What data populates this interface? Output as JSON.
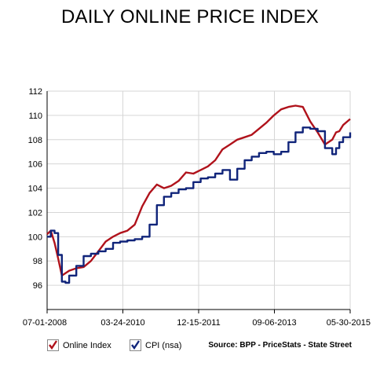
{
  "title": "DAILY ONLINE PRICE INDEX",
  "source": "Source: BPP - PriceStats - State Street",
  "chart_data": {
    "type": "line",
    "title": "DAILY ONLINE PRICE INDEX",
    "xlabel": "",
    "ylabel": "",
    "ylim": [
      94,
      112
    ],
    "yticks": [
      96,
      98,
      100,
      102,
      104,
      106,
      108,
      110,
      112
    ],
    "xlim": [
      "2008-07-01",
      "2015-05-30"
    ],
    "xticks": [
      "07-01-2008",
      "03-24-2010",
      "12-15-2011",
      "09-06-2013",
      "05-30-2015"
    ],
    "grid": true,
    "legend": "bottom-left",
    "series": [
      {
        "name": "Online Index",
        "color": "#b0121b",
        "x": [
          "2008-07-01",
          "2008-08-01",
          "2008-09-01",
          "2008-10-01",
          "2008-11-01",
          "2008-12-01",
          "2009-01-01",
          "2009-03-01",
          "2009-05-01",
          "2009-07-01",
          "2009-09-01",
          "2009-11-01",
          "2010-01-01",
          "2010-03-01",
          "2010-05-01",
          "2010-07-01",
          "2010-09-01",
          "2010-11-01",
          "2011-01-01",
          "2011-03-01",
          "2011-05-01",
          "2011-07-01",
          "2011-09-01",
          "2011-11-01",
          "2012-01-01",
          "2012-03-01",
          "2012-05-01",
          "2012-07-01",
          "2012-09-01",
          "2012-11-01",
          "2013-01-01",
          "2013-03-01",
          "2013-05-01",
          "2013-07-01",
          "2013-09-01",
          "2013-11-01",
          "2014-01-01",
          "2014-03-01",
          "2014-05-01",
          "2014-07-01",
          "2014-09-01",
          "2014-11-01",
          "2015-01-01",
          "2015-02-01",
          "2015-03-01",
          "2015-04-01",
          "2015-05-30"
        ],
        "values": [
          100.2,
          100.5,
          99.5,
          98.2,
          96.8,
          97.0,
          97.2,
          97.4,
          97.5,
          98.0,
          98.8,
          99.6,
          100.0,
          100.3,
          100.5,
          101.0,
          102.5,
          103.6,
          104.3,
          104.0,
          104.2,
          104.6,
          105.3,
          105.2,
          105.5,
          105.8,
          106.3,
          107.2,
          107.6,
          108.0,
          108.2,
          108.4,
          108.9,
          109.4,
          110.0,
          110.5,
          110.7,
          110.8,
          110.7,
          109.5,
          108.6,
          107.6,
          108.0,
          108.6,
          108.7,
          109.2,
          109.7
        ]
      },
      {
        "name": "CPI (nsa)",
        "color": "#10247a",
        "x": [
          "2008-07-01",
          "2008-08-01",
          "2008-09-01",
          "2008-10-01",
          "2008-11-01",
          "2008-12-01",
          "2009-01-01",
          "2009-03-01",
          "2009-05-01",
          "2009-07-01",
          "2009-09-01",
          "2009-11-01",
          "2010-01-01",
          "2010-03-01",
          "2010-05-01",
          "2010-07-01",
          "2010-09-01",
          "2010-11-01",
          "2011-01-01",
          "2011-03-01",
          "2011-05-01",
          "2011-07-01",
          "2011-09-01",
          "2011-11-01",
          "2012-01-01",
          "2012-03-01",
          "2012-05-01",
          "2012-07-01",
          "2012-09-01",
          "2012-11-01",
          "2013-01-01",
          "2013-03-01",
          "2013-05-01",
          "2013-07-01",
          "2013-09-01",
          "2013-11-01",
          "2014-01-01",
          "2014-03-01",
          "2014-05-01",
          "2014-07-01",
          "2014-09-01",
          "2014-11-01",
          "2015-01-01",
          "2015-02-01",
          "2015-03-01",
          "2015-04-01",
          "2015-05-30"
        ],
        "values": [
          100.0,
          100.5,
          100.3,
          98.5,
          96.3,
          96.2,
          96.8,
          97.6,
          98.4,
          98.6,
          98.8,
          99.0,
          99.5,
          99.6,
          99.7,
          99.8,
          100.0,
          101.0,
          102.6,
          103.3,
          103.6,
          103.9,
          104.0,
          104.5,
          104.8,
          104.9,
          105.2,
          105.5,
          104.7,
          105.6,
          106.3,
          106.6,
          106.9,
          107.0,
          106.8,
          107.0,
          107.8,
          108.6,
          109.0,
          108.9,
          108.7,
          107.3,
          106.8,
          107.3,
          107.8,
          108.2,
          108.6
        ]
      }
    ]
  }
}
